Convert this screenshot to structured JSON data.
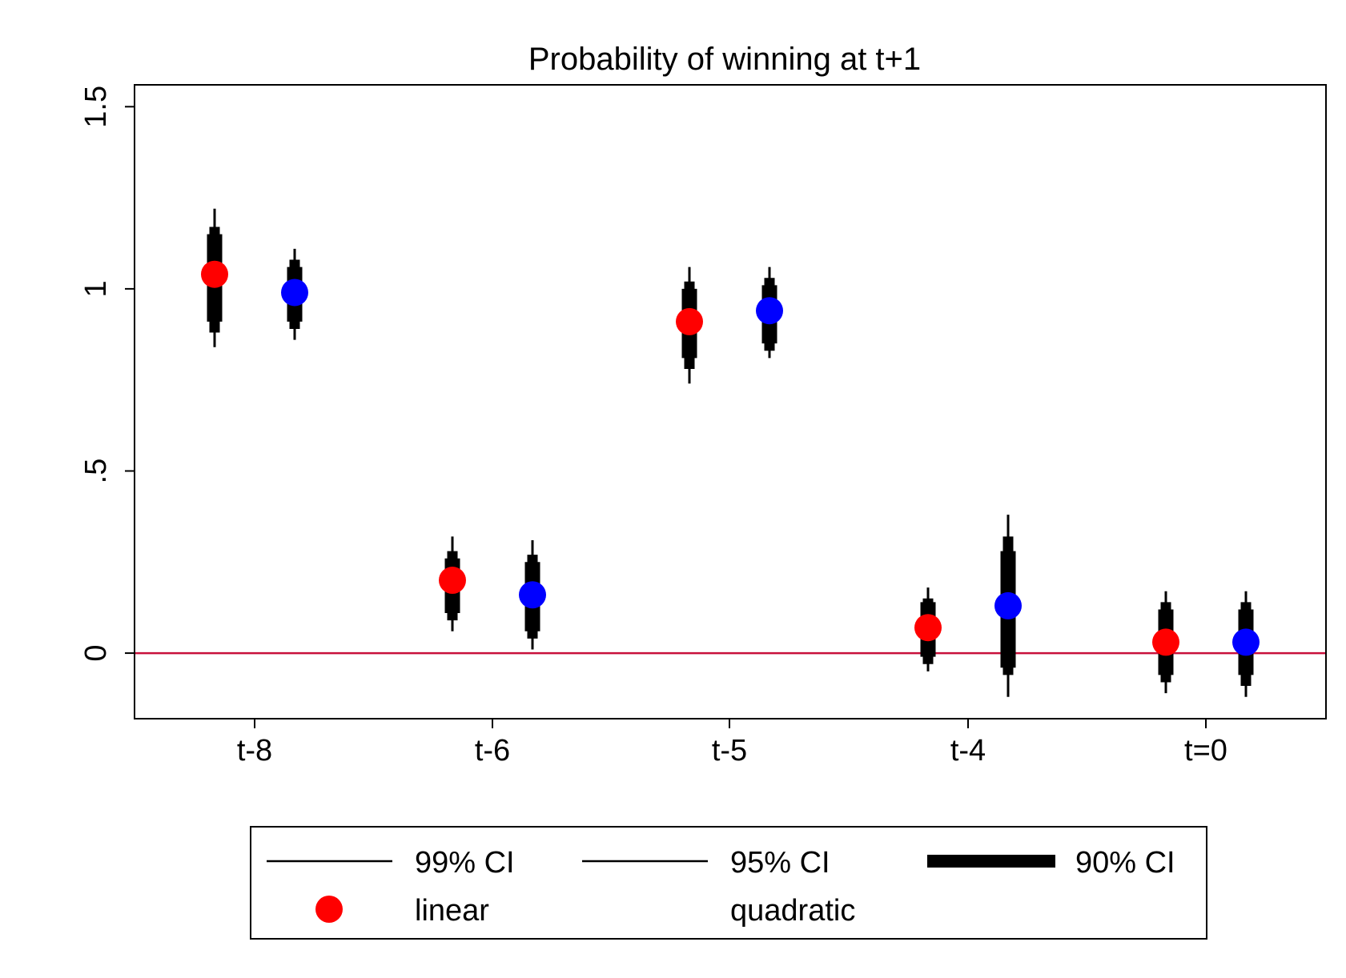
{
  "chart_data": {
    "type": "scatter",
    "title": "Probability of winning at t+1",
    "xlabel": "",
    "ylabel": "",
    "categories": [
      "t-8",
      "t-6",
      "t-5",
      "t-4",
      "t=0"
    ],
    "ylim": [
      -0.18,
      1.56
    ],
    "yticks": [
      0,
      0.5,
      1,
      1.5
    ],
    "ytick_labels": [
      "0",
      ".5",
      "1",
      "1.5"
    ],
    "reference_line": {
      "y": 0,
      "color": "#c8103b"
    },
    "series": [
      {
        "name": "linear",
        "color": "#ff0000",
        "offset": "left",
        "values": [
          1.04,
          0.2,
          0.91,
          0.07,
          0.03
        ],
        "ci99": [
          [
            0.84,
            1.22
          ],
          [
            0.06,
            0.32
          ],
          [
            0.74,
            1.06
          ],
          [
            -0.05,
            0.18
          ],
          [
            -0.11,
            0.17
          ]
        ],
        "ci95": [
          [
            0.88,
            1.17
          ],
          [
            0.09,
            0.28
          ],
          [
            0.78,
            1.02
          ],
          [
            -0.03,
            0.15
          ],
          [
            -0.08,
            0.14
          ]
        ],
        "ci90": [
          [
            0.91,
            1.15
          ],
          [
            0.11,
            0.26
          ],
          [
            0.81,
            1.0
          ],
          [
            -0.01,
            0.14
          ],
          [
            -0.06,
            0.12
          ]
        ]
      },
      {
        "name": "quadratic",
        "color": "#0000ff",
        "offset": "right",
        "values": [
          0.99,
          0.16,
          0.94,
          0.13,
          0.03
        ],
        "ci99": [
          [
            0.86,
            1.11
          ],
          [
            0.01,
            0.31
          ],
          [
            0.81,
            1.06
          ],
          [
            -0.12,
            0.38
          ],
          [
            -0.12,
            0.17
          ]
        ],
        "ci95": [
          [
            0.89,
            1.08
          ],
          [
            0.04,
            0.27
          ],
          [
            0.83,
            1.03
          ],
          [
            -0.06,
            0.32
          ],
          [
            -0.09,
            0.14
          ]
        ],
        "ci90": [
          [
            0.91,
            1.06
          ],
          [
            0.06,
            0.25
          ],
          [
            0.85,
            1.01
          ],
          [
            -0.04,
            0.28
          ],
          [
            -0.06,
            0.12
          ]
        ]
      }
    ],
    "legend": {
      "position": "bottom",
      "entries": [
        {
          "label": "99% CI",
          "kind": "ci99"
        },
        {
          "label": "95% CI",
          "kind": "ci95"
        },
        {
          "label": "90% CI",
          "kind": "ci90"
        },
        {
          "label": "linear",
          "kind": "marker",
          "color": "#ff0000"
        },
        {
          "label": "quadratic",
          "kind": "marker",
          "color": "#0000ff"
        }
      ]
    }
  }
}
